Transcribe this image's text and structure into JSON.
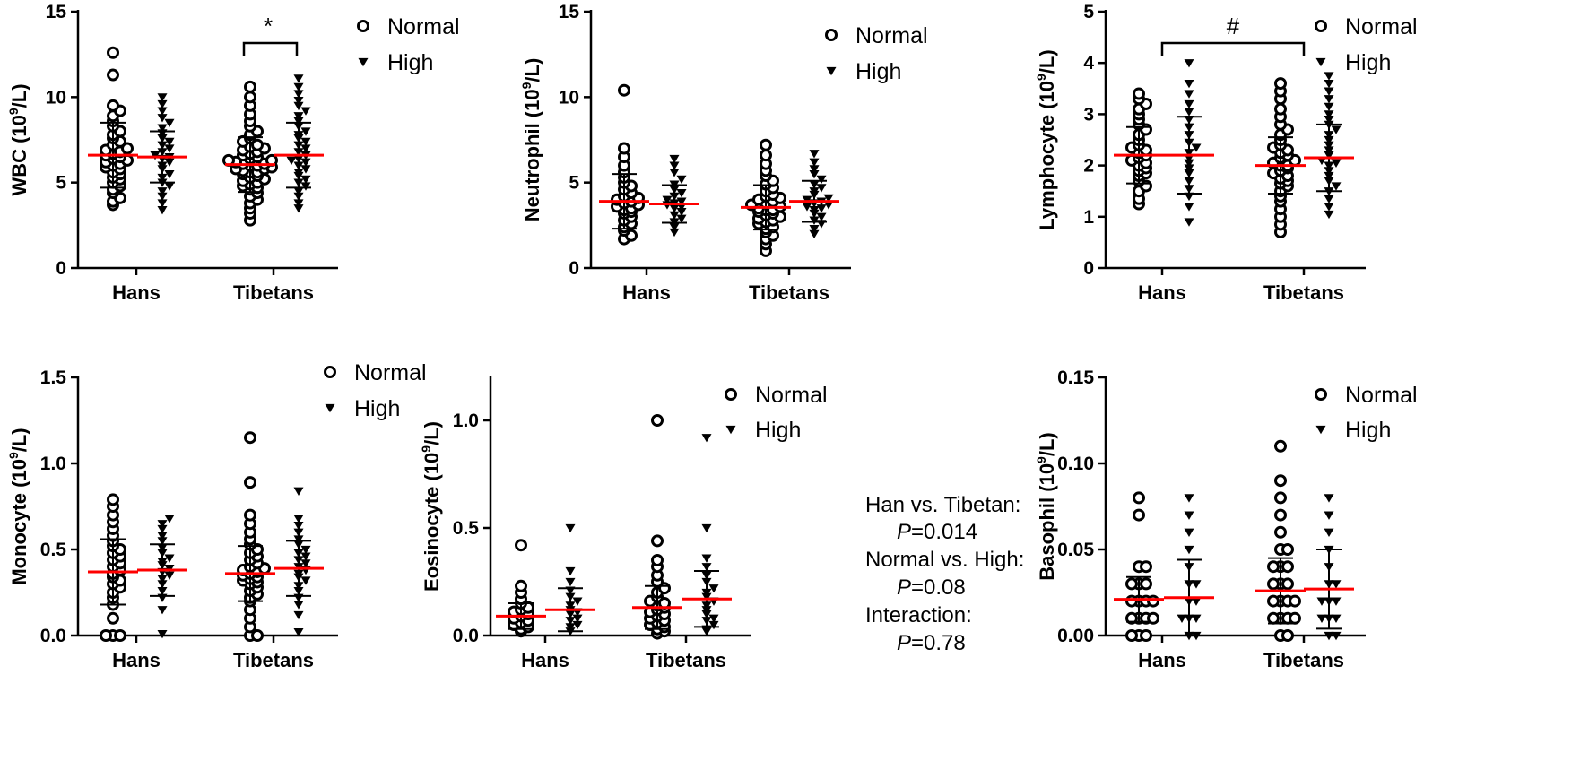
{
  "legend": {
    "normal": "Normal",
    "high": "High"
  },
  "colors": {
    "mean_line": "#ff0000",
    "marker": "#000000"
  },
  "stats_note": {
    "line1": "Han vs. Tibetan:",
    "line2_p": "P",
    "line2_v": "=0.014",
    "line3": "Normal vs. High:",
    "line4_p": "P",
    "line4_v": "=0.08",
    "line5": "Interaction:",
    "line6_p": "P",
    "line6_v": "=0.78"
  },
  "chart_data": [
    {
      "type": "scatter",
      "ylabel_main": "WBC (10",
      "ylabel_sup": "9",
      "ylabel_tail": "/L)",
      "categories": [
        "Hans",
        "Tibetans"
      ],
      "ylim": [
        0,
        15
      ],
      "yticks": [
        "0",
        "5",
        "10",
        "15"
      ],
      "series": [
        {
          "name": "Normal",
          "marker": "circle",
          "mean": [
            6.6,
            6.05
          ],
          "sd": [
            1.9,
            1.6
          ],
          "points": [
            [
              3.7,
              3.9,
              4.1,
              4.4,
              4.6,
              4.8,
              5.0,
              5.2,
              5.3,
              5.5,
              5.6,
              5.8,
              5.9,
              6.0,
              6.1,
              6.2,
              6.3,
              6.4,
              6.5,
              6.6,
              6.7,
              6.8,
              6.9,
              7.0,
              7.2,
              7.4,
              7.6,
              7.8,
              8.0,
              8.3,
              8.6,
              8.9,
              9.2,
              9.5,
              11.3,
              12.6
            ],
            [
              2.8,
              3.2,
              3.5,
              3.8,
              4.0,
              4.2,
              4.4,
              4.6,
              4.7,
              4.8,
              4.9,
              5.0,
              5.1,
              5.2,
              5.3,
              5.4,
              5.5,
              5.6,
              5.6,
              5.7,
              5.8,
              5.8,
              5.9,
              6.0,
              6.0,
              6.1,
              6.1,
              6.2,
              6.3,
              6.3,
              6.4,
              6.5,
              6.6,
              6.7,
              6.8,
              6.9,
              7.0,
              7.1,
              7.2,
              7.4,
              7.6,
              7.8,
              8.0,
              8.3,
              8.6,
              9.0,
              9.5,
              10.0,
              10.6
            ]
          ]
        },
        {
          "name": "High",
          "marker": "triangle",
          "mean": [
            6.5,
            6.6
          ],
          "sd": [
            1.5,
            1.9
          ],
          "points": [
            [
              3.4,
              3.8,
              4.2,
              4.5,
              4.8,
              5.0,
              5.3,
              5.5,
              5.8,
              6.0,
              6.2,
              6.4,
              6.5,
              6.6,
              6.8,
              7.0,
              7.2,
              7.4,
              7.6,
              7.9,
              8.2,
              8.5,
              8.8,
              9.2,
              9.6,
              10.0
            ],
            [
              3.5,
              3.8,
              4.2,
              4.5,
              4.8,
              5.0,
              5.2,
              5.4,
              5.6,
              5.8,
              6.0,
              6.2,
              6.3,
              6.4,
              6.6,
              6.8,
              7.0,
              7.2,
              7.4,
              7.6,
              7.8,
              8.0,
              8.3,
              8.6,
              8.9,
              9.2,
              9.5,
              9.8,
              10.2,
              10.6,
              11.1
            ]
          ]
        }
      ],
      "annotation": "*"
    },
    {
      "type": "scatter",
      "ylabel_main": "Neutrophil (10",
      "ylabel_sup": "9",
      "ylabel_tail": "/L)",
      "categories": [
        "Hans",
        "Tibetans"
      ],
      "ylim": [
        0,
        15
      ],
      "yticks": [
        "0",
        "5",
        "10",
        "15"
      ],
      "series": [
        {
          "name": "Normal",
          "marker": "circle",
          "mean": [
            3.9,
            3.55
          ],
          "sd": [
            1.6,
            1.3
          ],
          "points": [
            [
              1.7,
              1.9,
              2.2,
              2.4,
              2.6,
              2.8,
              3.0,
              3.2,
              3.3,
              3.4,
              3.5,
              3.6,
              3.7,
              3.8,
              3.9,
              4.0,
              4.1,
              4.2,
              4.4,
              4.6,
              4.8,
              5.0,
              5.3,
              5.6,
              6.0,
              6.5,
              7.0,
              10.4
            ],
            [
              1.0,
              1.4,
              1.7,
              1.9,
              2.1,
              2.3,
              2.4,
              2.6,
              2.7,
              2.8,
              2.9,
              3.0,
              3.1,
              3.2,
              3.3,
              3.4,
              3.4,
              3.5,
              3.6,
              3.7,
              3.8,
              3.9,
              4.0,
              4.1,
              4.2,
              4.3,
              4.5,
              4.7,
              4.9,
              5.1,
              5.4,
              5.7,
              6.1,
              6.6,
              7.2
            ]
          ]
        },
        {
          "name": "High",
          "marker": "triangle",
          "mean": [
            3.75,
            3.9
          ],
          "sd": [
            1.1,
            1.2
          ],
          "points": [
            [
              2.1,
              2.4,
              2.7,
              2.9,
              3.1,
              3.3,
              3.5,
              3.6,
              3.7,
              3.8,
              3.9,
              4.0,
              4.2,
              4.4,
              4.6,
              4.9,
              5.2,
              5.6,
              6.0,
              6.4
            ],
            [
              2.0,
              2.3,
              2.6,
              2.8,
              3.0,
              3.2,
              3.4,
              3.5,
              3.6,
              3.7,
              3.8,
              3.9,
              4.0,
              4.1,
              4.3,
              4.5,
              4.7,
              4.9,
              5.2,
              5.5,
              5.8,
              6.2,
              6.7
            ]
          ]
        }
      ]
    },
    {
      "type": "scatter",
      "ylabel_main": "Lymphocyte (10",
      "ylabel_sup": "9",
      "ylabel_tail": "/L)",
      "categories": [
        "Hans",
        "Tibetans"
      ],
      "ylim": [
        0,
        5
      ],
      "yticks": [
        "0",
        "1",
        "2",
        "3",
        "4",
        "5"
      ],
      "series": [
        {
          "name": "Normal",
          "marker": "circle",
          "mean": [
            2.2,
            2.0
          ],
          "sd": [
            0.55,
            0.55
          ],
          "points": [
            [
              1.25,
              1.35,
              1.5,
              1.6,
              1.7,
              1.8,
              1.85,
              1.9,
              1.95,
              2.0,
              2.05,
              2.1,
              2.15,
              2.2,
              2.25,
              2.3,
              2.35,
              2.4,
              2.5,
              2.6,
              2.7,
              2.8,
              2.9,
              3.0,
              3.1,
              3.2,
              3.3,
              3.4
            ],
            [
              0.7,
              0.85,
              1.0,
              1.15,
              1.3,
              1.4,
              1.5,
              1.6,
              1.65,
              1.7,
              1.75,
              1.8,
              1.85,
              1.9,
              1.95,
              2.0,
              2.0,
              2.05,
              2.1,
              2.15,
              2.2,
              2.25,
              2.3,
              2.35,
              2.4,
              2.5,
              2.6,
              2.7,
              2.8,
              2.95,
              3.1,
              3.3,
              3.45,
              3.6
            ]
          ]
        },
        {
          "name": "High",
          "marker": "triangle",
          "mean": [
            2.2,
            2.15
          ],
          "sd": [
            0.75,
            0.65
          ],
          "points": [
            [
              0.9,
              1.2,
              1.4,
              1.55,
              1.7,
              1.85,
              1.95,
              2.05,
              2.15,
              2.25,
              2.35,
              2.45,
              2.6,
              2.75,
              2.9,
              3.05,
              3.2,
              3.4,
              3.6,
              4.0
            ],
            [
              1.05,
              1.2,
              1.35,
              1.5,
              1.6,
              1.7,
              1.8,
              1.9,
              2.0,
              2.05,
              2.1,
              2.2,
              2.3,
              2.4,
              2.5,
              2.6,
              2.7,
              2.8,
              2.9,
              3.0,
              3.15,
              3.3,
              3.45,
              3.6,
              3.75
            ]
          ]
        }
      ],
      "annotation": "#"
    },
    {
      "type": "scatter",
      "ylabel_main": "Monocyte (10",
      "ylabel_sup": "9",
      "ylabel_tail": "/L)",
      "categories": [
        "Hans",
        "Tibetans"
      ],
      "ylim": [
        0,
        1.5
      ],
      "yticks": [
        "0.0",
        "0.5",
        "1.0",
        "1.5"
      ],
      "series": [
        {
          "name": "Normal",
          "marker": "circle",
          "mean": [
            0.37,
            0.36
          ],
          "sd": [
            0.19,
            0.16
          ],
          "points": [
            [
              0.0,
              0.0,
              0.0,
              0.1,
              0.18,
              0.22,
              0.25,
              0.28,
              0.3,
              0.32,
              0.34,
              0.36,
              0.38,
              0.4,
              0.42,
              0.44,
              0.46,
              0.48,
              0.5,
              0.52,
              0.55,
              0.58,
              0.62,
              0.66,
              0.7,
              0.75,
              0.79
            ],
            [
              0.0,
              0.0,
              0.05,
              0.1,
              0.15,
              0.2,
              0.22,
              0.24,
              0.26,
              0.28,
              0.3,
              0.31,
              0.32,
              0.33,
              0.34,
              0.35,
              0.36,
              0.37,
              0.38,
              0.39,
              0.4,
              0.42,
              0.44,
              0.46,
              0.48,
              0.5,
              0.53,
              0.56,
              0.6,
              0.65,
              0.7,
              0.89,
              1.15
            ]
          ]
        },
        {
          "name": "High",
          "marker": "triangle",
          "mean": [
            0.38,
            0.39
          ],
          "sd": [
            0.15,
            0.16
          ],
          "points": [
            [
              0.01,
              0.15,
              0.22,
              0.26,
              0.3,
              0.33,
              0.35,
              0.37,
              0.39,
              0.41,
              0.43,
              0.45,
              0.48,
              0.51,
              0.55,
              0.58,
              0.62,
              0.65,
              0.68
            ],
            [
              0.02,
              0.12,
              0.18,
              0.22,
              0.26,
              0.29,
              0.32,
              0.34,
              0.36,
              0.38,
              0.4,
              0.42,
              0.44,
              0.46,
              0.48,
              0.5,
              0.53,
              0.56,
              0.6,
              0.64,
              0.68,
              0.84
            ]
          ]
        }
      ]
    },
    {
      "type": "scatter",
      "ylabel_main": "Eosinocyte (10",
      "ylabel_sup": "9",
      "ylabel_tail": "/L)",
      "categories": [
        "Hans",
        "Tibetans"
      ],
      "ylim": [
        0,
        1.2
      ],
      "yticks": [
        "0.0",
        "0.5",
        "1.0"
      ],
      "series": [
        {
          "name": "Normal",
          "marker": "circle",
          "mean": [
            0.09,
            0.13
          ],
          "sd": [
            0.06,
            0.1
          ],
          "points": [
            [
              0.02,
              0.03,
              0.04,
              0.05,
              0.06,
              0.07,
              0.08,
              0.09,
              0.1,
              0.11,
              0.12,
              0.13,
              0.15,
              0.17,
              0.2,
              0.23,
              0.42
            ],
            [
              0.01,
              0.02,
              0.03,
              0.04,
              0.05,
              0.06,
              0.07,
              0.08,
              0.09,
              0.1,
              0.11,
              0.12,
              0.13,
              0.14,
              0.15,
              0.16,
              0.18,
              0.2,
              0.22,
              0.25,
              0.28,
              0.32,
              0.35,
              0.44,
              1.0
            ]
          ]
        },
        {
          "name": "High",
          "marker": "triangle",
          "mean": [
            0.12,
            0.17
          ],
          "sd": [
            0.1,
            0.13
          ],
          "points": [
            [
              0.02,
              0.04,
              0.05,
              0.07,
              0.08,
              0.1,
              0.11,
              0.12,
              0.14,
              0.16,
              0.18,
              0.21,
              0.25,
              0.3,
              0.5
            ],
            [
              0.02,
              0.03,
              0.05,
              0.07,
              0.08,
              0.1,
              0.12,
              0.14,
              0.16,
              0.18,
              0.2,
              0.22,
              0.25,
              0.28,
              0.32,
              0.36,
              0.5,
              0.92
            ]
          ]
        }
      ]
    },
    {
      "type": "scatter",
      "ylabel_main": "Basophil (10",
      "ylabel_sup": "9",
      "ylabel_tail": "/L)",
      "categories": [
        "Hans",
        "Tibetans"
      ],
      "ylim": [
        0,
        0.15
      ],
      "yticks": [
        "0.00",
        "0.05",
        "0.10",
        "0.15"
      ],
      "series": [
        {
          "name": "Normal",
          "marker": "circle",
          "mean": [
            0.021,
            0.026
          ],
          "sd": [
            0.013,
            0.019
          ],
          "points": [
            [
              0.0,
              0.0,
              0.0,
              0.01,
              0.01,
              0.01,
              0.01,
              0.02,
              0.02,
              0.02,
              0.02,
              0.03,
              0.03,
              0.03,
              0.04,
              0.04,
              0.07,
              0.08
            ],
            [
              0.0,
              0.0,
              0.01,
              0.01,
              0.01,
              0.01,
              0.02,
              0.02,
              0.02,
              0.02,
              0.03,
              0.03,
              0.03,
              0.04,
              0.04,
              0.04,
              0.05,
              0.05,
              0.06,
              0.07,
              0.08,
              0.09,
              0.11
            ]
          ]
        },
        {
          "name": "High",
          "marker": "triangle",
          "mean": [
            0.022,
            0.027
          ],
          "sd": [
            0.022,
            0.023
          ],
          "points": [
            [
              0.0,
              0.0,
              0.01,
              0.01,
              0.01,
              0.02,
              0.02,
              0.03,
              0.03,
              0.04,
              0.05,
              0.06,
              0.07,
              0.08
            ],
            [
              0.0,
              0.0,
              0.01,
              0.01,
              0.01,
              0.02,
              0.02,
              0.02,
              0.03,
              0.03,
              0.04,
              0.05,
              0.06,
              0.07,
              0.08
            ]
          ]
        }
      ]
    }
  ]
}
